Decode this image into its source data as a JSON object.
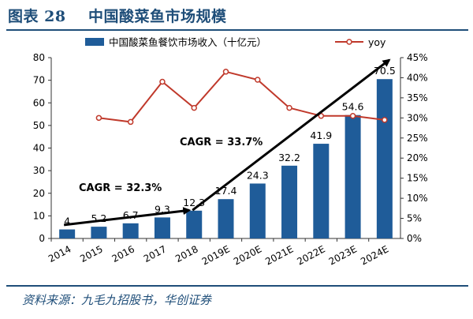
{
  "header": {
    "title_label": "图表 28",
    "title_text": "中国酸菜鱼市场规模"
  },
  "footer": {
    "source": "资料来源：九毛九招股书，华创证券"
  },
  "chart_data": {
    "type": "bar",
    "categories": [
      "2014",
      "2015",
      "2016",
      "2017",
      "2018",
      "2019E",
      "2020E",
      "2021E",
      "2022E",
      "2023E",
      "2024E"
    ],
    "series": [
      {
        "name": "中国酸菜鱼餐饮市场收入（十亿元）",
        "type": "bar",
        "axis": "left",
        "color": "#1f5c99",
        "values": [
          4,
          5.2,
          6.7,
          9.3,
          12.3,
          17.4,
          24.3,
          32.2,
          41.9,
          54.6,
          70.5
        ],
        "labels": [
          "4",
          "5.2",
          "6.7",
          "9.3",
          "12.3",
          "17.4",
          "24.3",
          "32.2",
          "41.9",
          "54.6",
          "70.5"
        ]
      },
      {
        "name": "yoy",
        "type": "line",
        "axis": "right",
        "color": "#c0392b",
        "values": [
          null,
          30,
          29,
          39,
          32.5,
          41.5,
          39.5,
          32.5,
          30.5,
          30.5,
          29.5
        ]
      }
    ],
    "left_axis": {
      "min": 0,
      "max": 80,
      "step": 10,
      "ticks": [
        "0",
        "10",
        "20",
        "30",
        "40",
        "50",
        "60",
        "70",
        "80"
      ]
    },
    "right_axis": {
      "min": 0,
      "max": 45,
      "step": 5,
      "ticks": [
        "0%",
        "5%",
        "10%",
        "15%",
        "20%",
        "25%",
        "30%",
        "35%",
        "40%",
        "45%"
      ]
    },
    "annotations": [
      {
        "text": "CAGR = 32.3%",
        "from_index": 0,
        "from_value": 6,
        "to_index": 4,
        "to_value": 12.5
      },
      {
        "text": "CAGR = 33.7%",
        "from_index": 4,
        "from_value": 12.5,
        "to_index": 10,
        "to_value": 79
      }
    ],
    "legend": {
      "position": "top",
      "entries": [
        "中国酸菜鱼餐饮市场收入（十亿元）",
        "yoy"
      ]
    }
  }
}
